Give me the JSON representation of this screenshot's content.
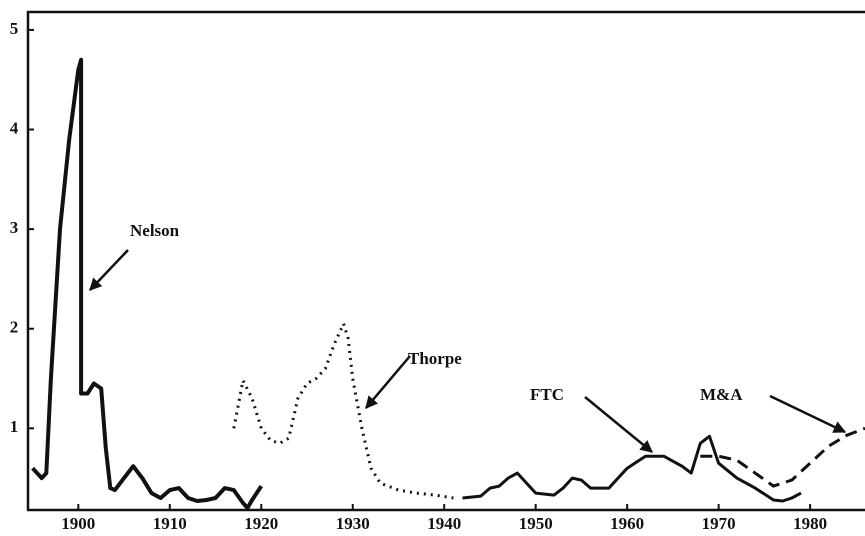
{
  "chart_data": {
    "type": "line",
    "xlim": [
      1894.5,
      1986
    ],
    "xticks": [
      1900,
      1910,
      1920,
      1930,
      1940,
      1950,
      1960,
      1970,
      1980
    ],
    "ylim": [
      0.18,
      5.18
    ],
    "yticks": [
      1,
      2,
      3,
      4,
      5
    ],
    "series": [
      {
        "name": "Nelson",
        "color": "#111111",
        "dash": "solid",
        "x": [
          1895,
          1896,
          1896.5,
          1897,
          1898,
          1899,
          1900,
          1900.3,
          1900.3,
          1901,
          1901.7,
          1902.5,
          1903,
          1903.5,
          1904,
          1905,
          1906,
          1907,
          1908,
          1909,
          1910,
          1911,
          1912,
          1913,
          1914,
          1915,
          1916,
          1917,
          1918,
          1918.5,
          1919,
          1920
        ],
        "values": [
          0.6,
          0.5,
          0.55,
          1.5,
          3,
          3.9,
          4.6,
          4.7,
          1.35,
          1.35,
          1.45,
          1.4,
          0.8,
          0.4,
          0.38,
          0.5,
          0.62,
          0.5,
          0.35,
          0.3,
          0.38,
          0.4,
          0.3,
          0.27,
          0.28,
          0.3,
          0.4,
          0.38,
          0.25,
          0.2,
          0.28,
          0.42
        ]
      },
      {
        "name": "Thorpe",
        "color": "#111111",
        "dash": "dotted",
        "x": [
          1917,
          1918,
          1919,
          1920,
          1921,
          1922,
          1923,
          1924,
          1925,
          1926,
          1927,
          1928,
          1929,
          1929.5,
          1930,
          1931,
          1932,
          1933,
          1935,
          1937,
          1939,
          1941
        ],
        "values": [
          1.0,
          1.48,
          1.3,
          1.0,
          0.88,
          0.85,
          0.9,
          1.3,
          1.45,
          1.5,
          1.6,
          1.85,
          2.05,
          1.9,
          1.5,
          1.0,
          0.6,
          0.45,
          0.38,
          0.35,
          0.33,
          0.3
        ]
      },
      {
        "name": "FTC",
        "color": "#111111",
        "dash": "solid",
        "x": [
          1942,
          1944,
          1945,
          1946,
          1947,
          1948,
          1949,
          1950,
          1952,
          1953,
          1954,
          1955,
          1956,
          1958,
          1959,
          1960,
          1962,
          1964,
          1966,
          1967,
          1968,
          1969,
          1970,
          1972,
          1974,
          1976,
          1977,
          1978,
          1979
        ],
        "values": [
          0.3,
          0.32,
          0.4,
          0.42,
          0.5,
          0.55,
          0.45,
          0.35,
          0.33,
          0.4,
          0.5,
          0.48,
          0.4,
          0.4,
          0.5,
          0.6,
          0.72,
          0.72,
          0.62,
          0.55,
          0.85,
          0.92,
          0.65,
          0.5,
          0.4,
          0.28,
          0.27,
          0.3,
          0.35
        ]
      },
      {
        "name": "M&A",
        "color": "#111111",
        "dash": "dashed",
        "x": [
          1968,
          1970,
          1972,
          1974,
          1976,
          1978,
          1980,
          1982,
          1984,
          1986
        ],
        "values": [
          0.72,
          0.72,
          0.68,
          0.55,
          0.42,
          0.48,
          0.65,
          0.82,
          0.93,
          1.0
        ]
      }
    ]
  }
}
